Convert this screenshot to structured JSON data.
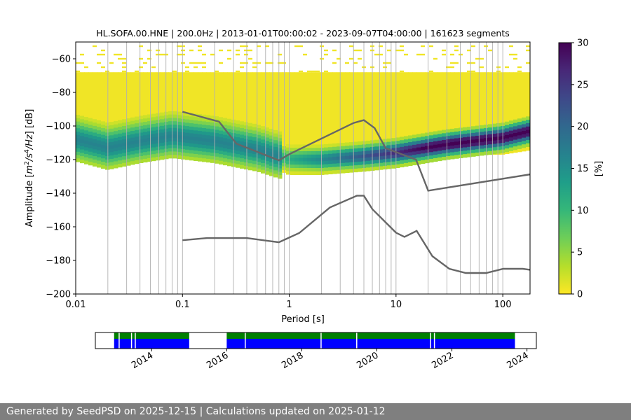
{
  "chart_data": [
    {
      "type": "heatmap",
      "title": "HL.SOFA.00.HNE | 200.0Hz | 2013-01-01T00:00:02 - 2023-09-07T04:00:00 | 161623 segments",
      "xlabel": "Period [s]",
      "ylabel_main": "Amplitude [",
      "ylabel_unit_m": "m",
      "ylabel_sup2": "2",
      "ylabel_slash_s": "/s",
      "ylabel_sup4": "4",
      "ylabel_slash_hz": "/Hz",
      "ylabel_tail": "] [dB]",
      "x_scale": "log",
      "xlim": [
        0.01,
        180
      ],
      "ylim": [
        -200,
        -50
      ],
      "x_ticks": [
        {
          "value": 0.01,
          "label": "0.01"
        },
        {
          "value": 0.1,
          "label": "0.1"
        },
        {
          "value": 1,
          "label": "1"
        },
        {
          "value": 10,
          "label": "10"
        },
        {
          "value": 100,
          "label": "100"
        }
      ],
      "y_ticks": [
        {
          "value": -60,
          "label": "−60"
        },
        {
          "value": -80,
          "label": "−80"
        },
        {
          "value": -100,
          "label": "−100"
        },
        {
          "value": -120,
          "label": "−120"
        },
        {
          "value": -140,
          "label": "−140"
        },
        {
          "value": -160,
          "label": "−160"
        },
        {
          "value": -180,
          "label": "−180"
        },
        {
          "value": -200,
          "label": "−200"
        }
      ],
      "grid": "vertical, log-spaced",
      "colorbar": {
        "label": "[%]",
        "range": [
          0,
          30
        ],
        "ticks": [
          {
            "value": 0,
            "label": "0"
          },
          {
            "value": 5,
            "label": "5"
          },
          {
            "value": 10,
            "label": "10"
          },
          {
            "value": 15,
            "label": "15"
          },
          {
            "value": 20,
            "label": "20"
          },
          {
            "value": 25,
            "label": "25"
          },
          {
            "value": 30,
            "label": "30"
          }
        ],
        "colormap": [
          "#fde725",
          "#b5de2b",
          "#6ece58",
          "#35b779",
          "#1f9e89",
          "#26828e",
          "#31688e",
          "#3e4989",
          "#482878",
          "#440154"
        ]
      },
      "density_mode": [
        {
          "x": 0.01,
          "y": -107
        },
        {
          "x": 0.02,
          "y": -112
        },
        {
          "x": 0.04,
          "y": -108
        },
        {
          "x": 0.08,
          "y": -105
        },
        {
          "x": 0.2,
          "y": -108
        },
        {
          "x": 0.5,
          "y": -113
        },
        {
          "x": 1,
          "y": -119
        },
        {
          "x": 2,
          "y": -119
        },
        {
          "x": 5,
          "y": -117
        },
        {
          "x": 10,
          "y": -115
        },
        {
          "x": 30,
          "y": -110
        },
        {
          "x": 100,
          "y": -106
        },
        {
          "x": 180,
          "y": -102
        }
      ],
      "series": [
        {
          "x": [
            0.1,
            0.22,
            0.32,
            0.8,
            1.0,
            4.0,
            5.0,
            6.3,
            8.0,
            15.4,
            20.0,
            180.0
          ],
          "y": [
            -91.5,
            -97.4,
            -110.5,
            -120.4,
            -116.8,
            -98.2,
            -96.5,
            -101.2,
            -113.2,
            -120.0,
            -138.5,
            -128.8
          ]
        },
        {
          "x": [
            0.1,
            0.17,
            0.4,
            0.8,
            1.24,
            2.4,
            4.3,
            5.0,
            6.0,
            10.0,
            12.0,
            15.6,
            21.9,
            31.6,
            45.0,
            70.0,
            101.0,
            154.0,
            180.0
          ],
          "y": [
            -168.0,
            -166.7,
            -166.7,
            -169.2,
            -163.7,
            -148.5,
            -141.5,
            -141.5,
            -149.5,
            -163.5,
            -166.0,
            -162.4,
            -177.5,
            -185.0,
            -187.5,
            -187.5,
            -185.0,
            -185.0,
            -185.6
          ]
        }
      ]
    },
    {
      "type": "timeline",
      "x_range_years": [
        2012.5,
        2024.25
      ],
      "rows": [
        "top",
        "bottom"
      ],
      "colors": {
        "top": "#008000",
        "bottom": "#0000ff"
      },
      "spans": [
        [
          2013.0,
          2015.0
        ],
        [
          2016.0,
          2023.68
        ]
      ],
      "gaps": [
        2013.12,
        2013.45,
        2013.55,
        2016.48,
        2018.5,
        2019.45,
        2021.42,
        2021.52
      ],
      "ticks": [
        {
          "value": 2014,
          "label": "2014"
        },
        {
          "value": 2016,
          "label": "2016"
        },
        {
          "value": 2018,
          "label": "2018"
        },
        {
          "value": 2020,
          "label": "2020"
        },
        {
          "value": 2022,
          "label": "2022"
        },
        {
          "value": 2024,
          "label": "2024"
        }
      ]
    }
  ],
  "footer": {
    "text": "Generated by SeedPSD on 2025-12-15 | Calculations updated on 2025-01-12"
  }
}
